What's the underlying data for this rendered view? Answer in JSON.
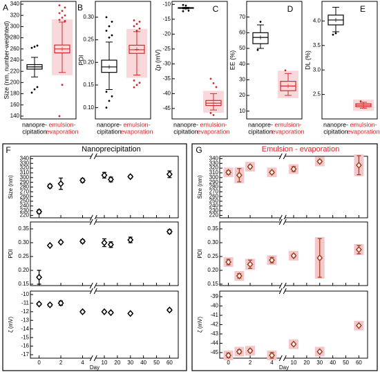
{
  "colors": {
    "black": "#000000",
    "red": "#d62728",
    "dark_red": "#a0421e",
    "pink_box": "#f8d8da",
    "pink_err": "#f4c7cc"
  },
  "chart_data": [
    {
      "id": "A",
      "type": "box",
      "panel_label": "A",
      "ylabel": "Size (nm, number-weighted)",
      "ylim": [
        135,
        345
      ],
      "yticks": [
        140,
        160,
        180,
        200,
        220,
        240,
        260,
        280,
        300,
        320,
        340
      ],
      "categories": [
        "nanopre-\ncipitation",
        "emulsion-\nevaporation"
      ],
      "boxes": [
        {
          "name": "nanoprecipitation",
          "color": "black",
          "whisker_low": 210,
          "q1": 224,
          "median": 228,
          "q3": 232,
          "whisker_high": 245,
          "mean": 228,
          "outliers": [
            182,
            188,
            192,
            262,
            264,
            266
          ]
        },
        {
          "name": "emulsion-evaporation",
          "color": "red",
          "whisker_low": 218,
          "q1": 253,
          "median": 260,
          "q3": 267,
          "whisker_high": 308,
          "mean": 260,
          "outliers": [
            140,
            196,
            310,
            312,
            316,
            320,
            324,
            328,
            334,
            338
          ]
        }
      ]
    },
    {
      "id": "B",
      "type": "box",
      "panel_label": "B",
      "ylabel": "PDI",
      "ylim": [
        0.075,
        0.335
      ],
      "yticks": [
        0.1,
        0.15,
        0.2,
        0.25,
        0.3
      ],
      "categories": [
        "nanopre-\ncipitation",
        "emulsion-\nevaporation"
      ],
      "boxes": [
        {
          "name": "nanoprecipitation",
          "color": "black",
          "whisker_low": 0.14,
          "q1": 0.178,
          "median": 0.19,
          "q3": 0.205,
          "whisker_high": 0.245,
          "mean": 0.19,
          "outliers": [
            0.1,
            0.115,
            0.125,
            0.135,
            0.255,
            0.26,
            0.27,
            0.28,
            0.29,
            0.3
          ]
        },
        {
          "name": "emulsion-evaporation",
          "color": "red",
          "whisker_low": 0.172,
          "q1": 0.22,
          "median": 0.228,
          "q3": 0.238,
          "whisker_high": 0.268,
          "mean": 0.229,
          "outliers": [
            0.145,
            0.15,
            0.155,
            0.16,
            0.27,
            0.275,
            0.28,
            0.285,
            0.29,
            0.293
          ]
        }
      ]
    },
    {
      "id": "C",
      "type": "box",
      "panel_label": "C",
      "ylabel": "ζp (mV)",
      "ylim": [
        -48.5,
        -9
      ],
      "yticks": [
        -10,
        -15,
        -20,
        -25,
        -30,
        -35,
        -40,
        -45
      ],
      "categories": [
        "nanopre-\ncipitation",
        "emulsion-\nevaporation"
      ],
      "boxes": [
        {
          "name": "nanoprecipitation",
          "color": "black",
          "whisker_low": -11.5,
          "q1": -11.3,
          "median": -11.2,
          "q3": -11.1,
          "whisker_high": -11.0,
          "mean": -11.2,
          "outliers": [
            -10.2,
            -10.4,
            -12.1,
            -12.3
          ]
        },
        {
          "name": "emulsion-evaporation",
          "color": "red",
          "whisker_low": -45.5,
          "q1": -44.0,
          "median": -43.2,
          "q3": -42.3,
          "whisker_high": -40.0,
          "mean": -43.2,
          "outliers": [
            -35.0,
            -36.5,
            -37.8,
            -46.5,
            -47.2
          ]
        }
      ]
    },
    {
      "id": "D",
      "type": "box",
      "panel_label": "D",
      "ylabel": "EE (%)",
      "ylim": [
        5,
        80
      ],
      "yticks": [
        10,
        20,
        30,
        40,
        50,
        60,
        70
      ],
      "categories": [
        "nanopre-\ncipitation",
        "emulsion-\nevaporation"
      ],
      "boxes": [
        {
          "name": "nanoprecipitation",
          "color": "black",
          "whisker_low": 50,
          "q1": 53,
          "median": 57,
          "q3": 60,
          "whisker_high": 65,
          "mean": 57,
          "outliers": [
            49,
            67
          ]
        },
        {
          "name": "emulsion-evaporation",
          "color": "red",
          "whisker_low": 20,
          "q1": 23,
          "median": 26,
          "q3": 29,
          "whisker_high": 34,
          "mean": 26,
          "outliers": [
            36
          ]
        }
      ]
    },
    {
      "id": "E",
      "type": "box",
      "panel_label": "E",
      "ylabel": "DL (%)",
      "ylim": [
        2.0,
        4.4
      ],
      "yticks": [
        2.5,
        3.0,
        3.5,
        4.0
      ],
      "categories": [
        "nanopre-\ncipitation",
        "emulsion-\nevaporation"
      ],
      "boxes": [
        {
          "name": "nanoprecipitation",
          "color": "black",
          "whisker_low": 3.78,
          "q1": 3.92,
          "median": 4.02,
          "q3": 4.12,
          "whisker_high": 4.28,
          "mean": 4.02,
          "outliers": [
            3.72,
            3.75
          ]
        },
        {
          "name": "emulsion-evaporation",
          "color": "red",
          "whisker_low": 2.22,
          "q1": 2.25,
          "median": 2.28,
          "q3": 2.31,
          "whisker_high": 2.34,
          "mean": 2.28,
          "outliers": [
            2.36
          ]
        }
      ]
    },
    {
      "id": "F",
      "type": "scatter",
      "panel_label": "F",
      "title": "Nanoprecipitation",
      "xlabel": "Day",
      "x": [
        0,
        1,
        2,
        4,
        10,
        15,
        30,
        60
      ],
      "xticks": [
        "0",
        "2",
        "4",
        "10",
        "20",
        "30",
        "40",
        "50",
        "60"
      ],
      "subplots": [
        {
          "ylabel": "Size (nm)",
          "ylim": [
            215,
            345
          ],
          "yticks": [
            220,
            230,
            240,
            250,
            260,
            270,
            280,
            290,
            300,
            310,
            320,
            330,
            340
          ],
          "values": [
            228,
            282,
            287,
            294,
            305,
            296,
            302,
            307
          ],
          "errors": [
            4,
            4,
            12,
            4,
            6,
            5,
            3,
            7
          ]
        },
        {
          "ylabel": "PDI",
          "ylim": [
            0.145,
            0.375
          ],
          "yticks": [
            0.15,
            0.2,
            0.25,
            0.3,
            0.35
          ],
          "values": [
            0.175,
            0.29,
            0.302,
            0.305,
            0.3,
            0.293,
            0.31,
            0.34
          ],
          "errors": [
            0.025,
            0.004,
            0.004,
            0.006,
            0.014,
            0.01,
            0.01,
            0.007
          ]
        },
        {
          "ylabel": "ζ (mV)",
          "ylim": [
            -17.4,
            -9.6
          ],
          "yticks": [
            -10,
            -11,
            -12,
            -13,
            -14,
            -15,
            -16,
            -17
          ],
          "values": [
            -11.1,
            -11.2,
            -11.0,
            -12.0,
            -12.0,
            -12.1,
            -12.2,
            -11.8
          ],
          "errors": [
            0.15,
            0.15,
            0.25,
            0.15,
            0.12,
            0.12,
            0.1,
            0.15
          ]
        }
      ]
    },
    {
      "id": "G",
      "type": "scatter",
      "panel_label": "G",
      "title": "Emulsion - evaporation",
      "xlabel": "Day",
      "x": [
        0,
        1,
        2,
        4,
        10,
        30,
        60
      ],
      "xticks": [
        "0",
        "2",
        "4",
        "10",
        "20",
        "30",
        "40",
        "50",
        "60"
      ],
      "subplots": [
        {
          "ylabel": "Size (nm)",
          "ylim": [
            215,
            345
          ],
          "yticks": [
            220,
            230,
            240,
            250,
            260,
            270,
            280,
            290,
            300,
            310,
            320,
            330,
            340
          ],
          "values": [
            311,
            305,
            323,
            311,
            318,
            334,
            326
          ],
          "errors": [
            4,
            14,
            3,
            3,
            5,
            3,
            20
          ]
        },
        {
          "ylabel": "PDI",
          "ylim": [
            0.145,
            0.375
          ],
          "yticks": [
            0.15,
            0.2,
            0.25,
            0.3,
            0.35
          ],
          "values": [
            0.23,
            0.18,
            0.222,
            0.237,
            0.253,
            0.245,
            0.275
          ],
          "errors": [
            0.01,
            0.008,
            0.015,
            0.01,
            0.005,
            0.07,
            0.015
          ]
        },
        {
          "ylabel": "ζ (mV)",
          "ylim": [
            -45.6,
            -38.4
          ],
          "yticks": [
            -39,
            -40,
            -41,
            -42,
            -43,
            -44,
            -45
          ],
          "values": [
            -45.3,
            -44.9,
            -44.8,
            -45.3,
            -44.1,
            -44.9,
            -42.1
          ],
          "errors": [
            0.25,
            0.2,
            0.15,
            0.3,
            0.1,
            0.1,
            0.05
          ]
        }
      ]
    }
  ]
}
